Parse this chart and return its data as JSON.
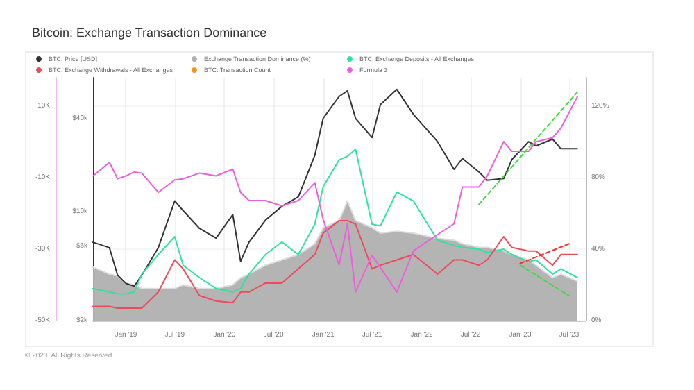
{
  "chart_data": {
    "type": "line",
    "title": "Bitcoin: Exchange Transaction Dominance",
    "annotations": [
      "© 2023. All Rights Reserved."
    ],
    "x": [
      "2018-09",
      "2018-11",
      "2018-12",
      "2019-01",
      "2019-02",
      "2019-03",
      "2019-05",
      "2019-07",
      "2019-08",
      "2019-10",
      "2019-12",
      "2020-02",
      "2020-03",
      "2020-04",
      "2020-06",
      "2020-08",
      "2020-10",
      "2020-12",
      "2021-01",
      "2021-03",
      "2021-04",
      "2021-05",
      "2021-07",
      "2021-08",
      "2021-10",
      "2021-12",
      "2022-03",
      "2022-05",
      "2022-06",
      "2022-08",
      "2022-09",
      "2022-11",
      "2022-12",
      "2023-02",
      "2023-03",
      "2023-05",
      "2023-06",
      "2023-08"
    ],
    "xlim": [
      "2018-09",
      "2023-09"
    ],
    "xticks": [
      {
        "value": "2019-01",
        "label": "Jan '19"
      },
      {
        "value": "2019-07",
        "label": "Jul '19"
      },
      {
        "value": "2020-01",
        "label": "Jan '20"
      },
      {
        "value": "2020-07",
        "label": "Jul '20"
      },
      {
        "value": "2021-01",
        "label": "Jan '21"
      },
      {
        "value": "2021-07",
        "label": "Jul '21"
      },
      {
        "value": "2022-01",
        "label": "Jan '22"
      },
      {
        "value": "2022-07",
        "label": "Jul '22"
      },
      {
        "value": "2023-01",
        "label": "Jan '23"
      },
      {
        "value": "2023-07",
        "label": "Jul '23"
      }
    ],
    "log": "y",
    "ylim": [
      2000,
      73000
    ],
    "yticks": [
      {
        "value": 2000,
        "label": "$2k"
      },
      {
        "value": 6000,
        "label": "$6k"
      },
      {
        "value": 10000,
        "label": "$10k"
      },
      {
        "value": 40000,
        "label": "$40k"
      }
    ],
    "y3lim": [
      -50000,
      18000
    ],
    "y3ticks": [
      {
        "value": -50000,
        "label": "-50K"
      },
      {
        "value": -30000,
        "label": "-30K"
      },
      {
        "value": -10000,
        "label": "-10K"
      },
      {
        "value": 10000,
        "label": "10K"
      }
    ],
    "y2lim": [
      0,
      136
    ],
    "y2ticks": [
      {
        "value": 0,
        "label": "0%"
      },
      {
        "value": 40,
        "label": "40%"
      },
      {
        "value": 80,
        "label": "80%"
      },
      {
        "value": 120,
        "label": "120%"
      }
    ],
    "grid": true,
    "legend": "top",
    "marker": "none",
    "line_style": "solid",
    "series": [
      {
        "name": "BTC: Price [USD]",
        "color": "#333333",
        "values": [
          6380,
          5890,
          3920,
          3470,
          3330,
          3920,
          5890,
          11780,
          10200,
          7830,
          6790,
          9600,
          4810,
          6380,
          8850,
          10860,
          12500,
          23100,
          40000,
          55300,
          60100,
          40000,
          30100,
          49000,
          61400,
          42500,
          28300,
          18800,
          22100,
          18100,
          16000,
          16400,
          21700,
          28300,
          26600,
          29400,
          25500,
          25500
        ]
      },
      {
        "name": "Exchange Transaction Dominance (%)",
        "type": "area",
        "axis": "y2",
        "color": "#b0b0b0",
        "values": [
          30,
          26,
          25,
          21,
          20,
          18,
          18,
          18,
          20,
          18,
          18,
          20,
          24,
          26,
          31,
          34,
          37,
          43,
          52,
          56,
          67,
          56,
          52,
          49,
          50,
          49,
          46,
          45,
          43,
          41,
          41,
          39,
          37,
          34,
          31,
          24,
          26,
          22
        ]
      },
      {
        "name": "BTC: Exchange Deposits - All Exchanges",
        "axis": "y2",
        "color": "#2ee3a0",
        "values": [
          18,
          16,
          15,
          15,
          16,
          26,
          37,
          47,
          31,
          24,
          18,
          16,
          18,
          26,
          37,
          44,
          37,
          54,
          75,
          90,
          92,
          96,
          54,
          53,
          72,
          67,
          45,
          42,
          41,
          40,
          38,
          40,
          37,
          33,
          34,
          26,
          29,
          24
        ]
      },
      {
        "name": "BTC: Exchange Withdrawals - All Exchanges",
        "axis": "y2",
        "color": "#ee4b5a",
        "values": [
          8,
          8,
          7,
          7,
          7,
          7,
          16,
          34,
          29,
          14,
          11,
          10,
          16,
          16,
          21,
          21,
          29,
          37,
          49,
          56,
          56,
          54,
          29,
          31,
          34,
          37,
          26,
          34,
          34,
          31,
          34,
          47,
          41,
          39,
          39,
          31,
          37,
          37
        ]
      },
      {
        "name": "BTC: Transaction Count",
        "axis": "y2",
        "color": "#f7931a",
        "values": [
          null,
          null,
          null,
          null,
          null,
          null,
          null,
          null,
          null,
          null,
          null,
          null,
          null,
          null,
          null,
          null,
          null,
          null,
          null,
          null,
          null,
          null,
          null,
          null,
          null,
          null,
          null,
          null,
          null,
          null,
          null,
          null,
          null,
          null,
          null,
          null,
          null,
          null
        ]
      },
      {
        "name": "Formula 3",
        "axis": "y3",
        "color": "#ee5ddc",
        "values": [
          -9500,
          -5700,
          -10300,
          -9500,
          -8400,
          -8700,
          -14100,
          -10600,
          -10300,
          -8700,
          -9500,
          -7600,
          -14100,
          -16400,
          -16400,
          -17900,
          -16400,
          -11400,
          -21700,
          -34400,
          -22900,
          -42000,
          -31700,
          -35100,
          -42000,
          -30500,
          -25900,
          -22900,
          -12600,
          -12600,
          -9500,
          100,
          -2600,
          -2600,
          100,
          1200,
          3900,
          12700
        ]
      },
      {
        "axis": "y2",
        "color": "#3ddc3d",
        "line_style": "dashed",
        "x": [
          "2022-08",
          "2023-08"
        ],
        "values": [
          65,
          128
        ]
      },
      {
        "axis": "y2",
        "color": "#3ddc3d",
        "line_style": "dashed",
        "x": [
          "2023-01",
          "2023-07"
        ],
        "values": [
          31,
          14
        ]
      },
      {
        "axis": "y2",
        "color": "#ff2a2a",
        "line_style": "dashed",
        "x": [
          "2023-01",
          "2023-07"
        ],
        "values": [
          32,
          43
        ]
      }
    ]
  }
}
